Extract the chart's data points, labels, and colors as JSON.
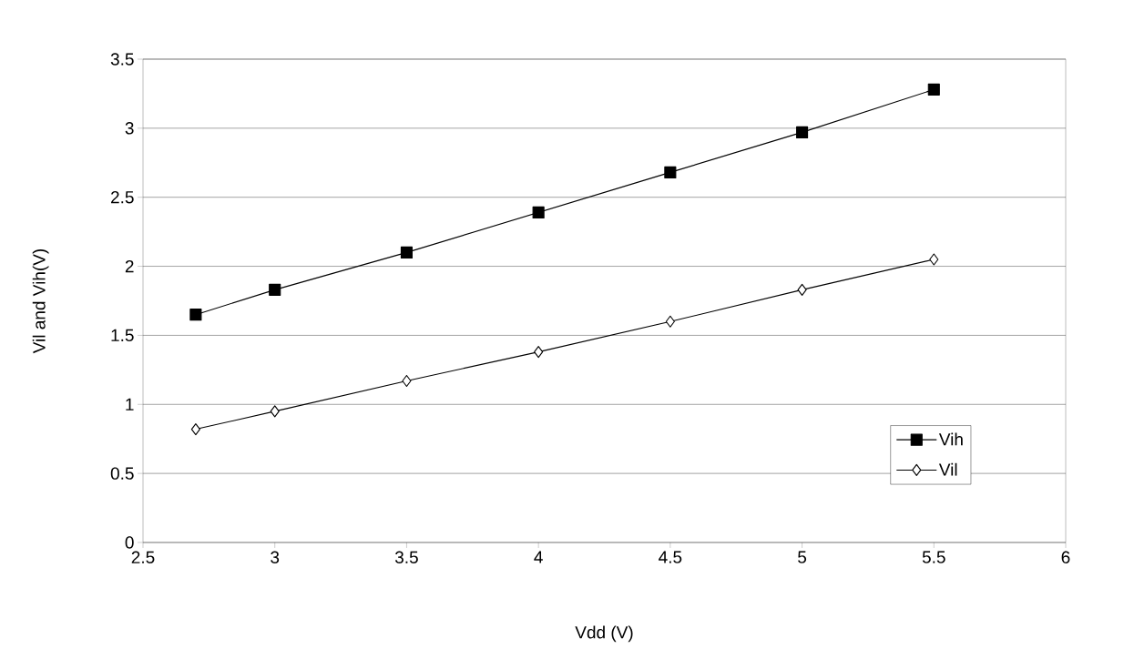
{
  "chart_data": {
    "type": "line",
    "xlabel": "Vdd (V)",
    "ylabel": "Vil and Vih(V)",
    "x": [
      2.7,
      3,
      3.5,
      4,
      4.5,
      5,
      5.5
    ],
    "series": [
      {
        "name": "Vih",
        "color": "#000000",
        "marker": "square",
        "values": [
          1.65,
          1.83,
          2.1,
          2.39,
          2.68,
          2.97,
          3.28
        ]
      },
      {
        "name": "Vil",
        "color": "#000000",
        "marker": "diamond",
        "values": [
          0.82,
          0.95,
          1.17,
          1.38,
          1.6,
          1.83,
          2.05
        ]
      }
    ],
    "xlim": [
      2.5,
      6
    ],
    "xticks": [
      2.5,
      3,
      3.5,
      4,
      4.5,
      5,
      5.5,
      6
    ],
    "ylim": [
      0,
      3.5
    ],
    "yticks": [
      0,
      0.5,
      1,
      1.5,
      2,
      2.5,
      3,
      3.5
    ],
    "grid": "y",
    "legend": "bottom right",
    "line_style": "solid"
  }
}
